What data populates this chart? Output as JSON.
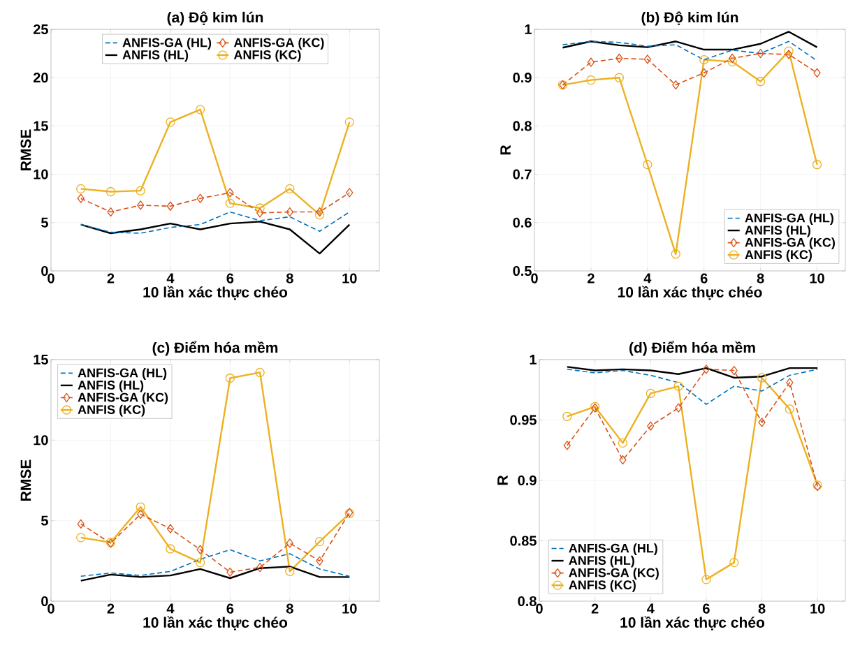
{
  "chart_data": [
    {
      "type": "line",
      "title": "(a) Độ kim lún",
      "xlabel": "10 lần xác thực chéo",
      "ylabel": "RMSE",
      "x": [
        1,
        2,
        3,
        4,
        5,
        6,
        7,
        8,
        9,
        10
      ],
      "xlim": [
        0,
        11
      ],
      "xticks": [
        0,
        2,
        4,
        6,
        8,
        10
      ],
      "ylim": [
        0,
        25
      ],
      "yticks": [
        0,
        5,
        10,
        15,
        20,
        25
      ],
      "grid": true,
      "legend": "top",
      "series": [
        {
          "name": "ANFIS-GA (HL)",
          "color": "#0072bd",
          "line_style": "dashed",
          "marker": "none",
          "values": [
            4.8,
            4.0,
            3.9,
            4.5,
            4.8,
            6.1,
            5.2,
            5.6,
            4.1,
            6.1
          ]
        },
        {
          "name": "ANFIS (HL)",
          "color": "#000000",
          "line_style": "solid",
          "marker": "none",
          "values": [
            4.8,
            3.9,
            4.3,
            4.9,
            4.3,
            4.9,
            5.1,
            4.3,
            1.8,
            4.8
          ]
        },
        {
          "name": "ANFIS-GA (KC)",
          "color": "#d95319",
          "line_style": "dashed",
          "marker": "diamond",
          "values": [
            7.5,
            6.1,
            6.8,
            6.7,
            7.5,
            8.1,
            6.0,
            6.1,
            6.1,
            8.1
          ]
        },
        {
          "name": "ANFIS (KC)",
          "color": "#edb120",
          "line_style": "solid",
          "marker": "circle",
          "values": [
            8.5,
            8.2,
            8.3,
            15.4,
            16.7,
            7.0,
            6.5,
            8.5,
            5.8,
            15.4
          ]
        }
      ]
    },
    {
      "type": "line",
      "title": "(b) Độ kim lún",
      "xlabel": "10 lần xác thực chéo",
      "ylabel": "R",
      "x": [
        1,
        2,
        3,
        4,
        5,
        6,
        7,
        8,
        9,
        10
      ],
      "xlim": [
        0,
        11
      ],
      "xticks": [
        0,
        2,
        4,
        6,
        8,
        10
      ],
      "ylim": [
        0.5,
        1
      ],
      "yticks": [
        0.5,
        0.6,
        0.7,
        0.8,
        0.9,
        1
      ],
      "grid": true,
      "legend": "bottom right",
      "series": [
        {
          "name": "ANFIS-GA (HL)",
          "color": "#0072bd",
          "line_style": "dashed",
          "marker": "none",
          "values": [
            0.968,
            0.975,
            0.973,
            0.965,
            0.968,
            0.937,
            0.957,
            0.95,
            0.975,
            0.935
          ]
        },
        {
          "name": "ANFIS (HL)",
          "color": "#000000",
          "line_style": "solid",
          "marker": "none",
          "values": [
            0.962,
            0.975,
            0.967,
            0.963,
            0.975,
            0.958,
            0.958,
            0.97,
            0.995,
            0.963
          ]
        },
        {
          "name": "ANFIS-GA (KC)",
          "color": "#d95319",
          "line_style": "dashed",
          "marker": "diamond",
          "values": [
            0.885,
            0.932,
            0.94,
            0.938,
            0.885,
            0.91,
            0.94,
            0.95,
            0.948,
            0.91
          ]
        },
        {
          "name": "ANFIS (KC)",
          "color": "#edb120",
          "line_style": "solid",
          "marker": "circle",
          "values": [
            0.885,
            0.895,
            0.9,
            0.72,
            0.535,
            0.937,
            0.933,
            0.892,
            0.955,
            0.72
          ]
        }
      ]
    },
    {
      "type": "line",
      "title": "(c) Điểm hóa mềm",
      "xlabel": "10 lần xác thực chéo",
      "ylabel": "RMSE",
      "x": [
        1,
        2,
        3,
        4,
        5,
        6,
        7,
        8,
        9,
        10
      ],
      "xlim": [
        0,
        11
      ],
      "xticks": [
        0,
        2,
        4,
        6,
        8,
        10
      ],
      "ylim": [
        0,
        15
      ],
      "yticks": [
        0,
        5,
        10,
        15
      ],
      "grid": true,
      "legend": "top left",
      "series": [
        {
          "name": "ANFIS-GA (HL)",
          "color": "#0072bd",
          "line_style": "dashed",
          "marker": "none",
          "values": [
            1.55,
            1.75,
            1.6,
            1.85,
            2.6,
            3.2,
            2.5,
            2.95,
            2.0,
            1.55
          ]
        },
        {
          "name": "ANFIS (HL)",
          "color": "#000000",
          "line_style": "solid",
          "marker": "none",
          "values": [
            1.27,
            1.65,
            1.5,
            1.6,
            2.0,
            1.43,
            2.05,
            2.15,
            1.5,
            1.5
          ]
        },
        {
          "name": "ANFIS-GA (KC)",
          "color": "#d95319",
          "line_style": "dashed",
          "marker": "diamond",
          "values": [
            4.8,
            3.6,
            5.4,
            4.5,
            3.2,
            1.8,
            2.1,
            3.6,
            2.5,
            5.5
          ]
        },
        {
          "name": "ANFIS (KC)",
          "color": "#edb120",
          "line_style": "solid",
          "marker": "circle",
          "values": [
            3.95,
            3.65,
            5.85,
            3.25,
            2.4,
            13.85,
            14.2,
            1.85,
            3.7,
            5.45
          ]
        }
      ]
    },
    {
      "type": "line",
      "title": "(d) Điểm hóa mềm",
      "xlabel": "10 lần xác thực chéo",
      "ylabel": "R",
      "x": [
        1,
        2,
        3,
        4,
        5,
        6,
        7,
        8,
        9,
        10
      ],
      "xlim": [
        0,
        11
      ],
      "xticks": [
        0,
        2,
        4,
        6,
        8,
        10
      ],
      "ylim": [
        0.8,
        1
      ],
      "yticks": [
        0.8,
        0.85,
        0.9,
        0.95,
        1
      ],
      "grid": true,
      "legend": "bottom left",
      "series": [
        {
          "name": "ANFIS-GA (HL)",
          "color": "#0072bd",
          "line_style": "dashed",
          "marker": "none",
          "values": [
            0.992,
            0.989,
            0.991,
            0.987,
            0.981,
            0.963,
            0.978,
            0.974,
            0.987,
            0.992
          ]
        },
        {
          "name": "ANFIS (HL)",
          "color": "#000000",
          "line_style": "solid",
          "marker": "none",
          "values": [
            0.994,
            0.991,
            0.992,
            0.991,
            0.988,
            0.993,
            0.985,
            0.986,
            0.993,
            0.993
          ]
        },
        {
          "name": "ANFIS-GA (KC)",
          "color": "#d95319",
          "line_style": "dashed",
          "marker": "diamond",
          "values": [
            0.929,
            0.96,
            0.917,
            0.945,
            0.96,
            0.992,
            0.991,
            0.948,
            0.981,
            0.895
          ]
        },
        {
          "name": "ANFIS (KC)",
          "color": "#edb120",
          "line_style": "solid",
          "marker": "circle",
          "values": [
            0.953,
            0.961,
            0.931,
            0.972,
            0.978,
            0.818,
            0.832,
            0.985,
            0.959,
            0.896
          ]
        }
      ]
    }
  ]
}
